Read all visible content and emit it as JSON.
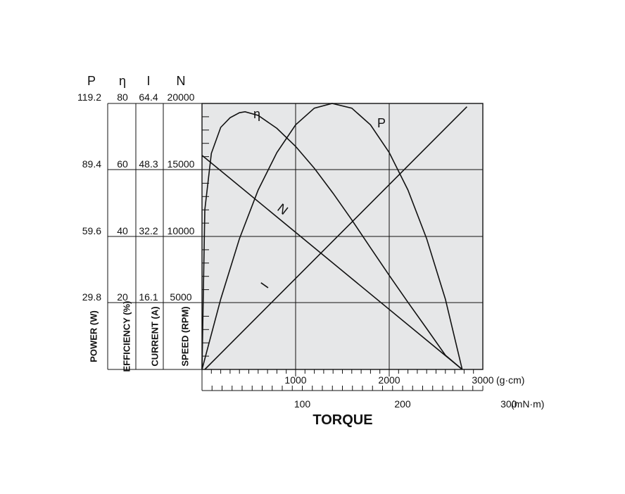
{
  "chart_data": {
    "type": "line",
    "title": "",
    "colors": {
      "plot_background": "#e6e7e8",
      "line": "#111111"
    },
    "grid": true,
    "left_axes": [
      {
        "symbol": "P",
        "label": "POWER (W)",
        "ticks": [
          "119.2",
          "89.4",
          "59.6",
          "29.8"
        ],
        "max": 119.2
      },
      {
        "symbol": "η",
        "label": "EFFICIENCY (%)",
        "ticks": [
          "80",
          "60",
          "40",
          "20"
        ],
        "max": 80
      },
      {
        "symbol": "I",
        "label": "CURRENT (A)",
        "ticks": [
          "64.4",
          "48.3",
          "32.2",
          "16.1"
        ],
        "max": 64.4
      },
      {
        "symbol": "N",
        "label": "SPEED (RPM)",
        "ticks": [
          "20000",
          "15000",
          "10000",
          "5000"
        ],
        "max": 20000
      }
    ],
    "x_axis": {
      "title": "TORQUE",
      "primary": {
        "ticks": [
          "1000",
          "2000",
          "3000"
        ],
        "unit": "(g·cm)",
        "range": [
          0,
          3000
        ]
      },
      "secondary": {
        "ticks": [
          "100",
          "200",
          "300"
        ],
        "unit": "(mN·m)",
        "range": [
          0,
          300
        ]
      }
    },
    "series": [
      {
        "name": "η",
        "axis": "efficiency",
        "x": [
          0,
          30,
          100,
          200,
          300,
          400,
          460,
          600,
          800,
          1000,
          1200,
          1400,
          1600,
          1800,
          2000,
          2200,
          2400,
          2600,
          2780
        ],
        "y": [
          0,
          48,
          65,
          72.8,
          75.7,
          77.2,
          77.5,
          76.4,
          72.5,
          67.1,
          60.5,
          53,
          45,
          36.6,
          28.3,
          20.2,
          12.3,
          4.3,
          0
        ]
      },
      {
        "name": "P",
        "axis": "power",
        "x": [
          0,
          200,
          400,
          600,
          800,
          1000,
          1200,
          1390,
          1600,
          1800,
          2000,
          2200,
          2400,
          2600,
          2780
        ],
        "y": [
          0,
          31.5,
          58.6,
          80.4,
          97.2,
          109.6,
          117.1,
          119.2,
          117.1,
          109.6,
          97.2,
          80.4,
          58.6,
          31.5,
          0
        ]
      },
      {
        "name": "N",
        "axis": "speed",
        "x": [
          0,
          2780
        ],
        "y": [
          16100,
          0
        ]
      },
      {
        "name": "I",
        "axis": "current",
        "x": [
          30,
          2830
        ],
        "y": [
          0,
          63.6
        ]
      }
    ]
  }
}
